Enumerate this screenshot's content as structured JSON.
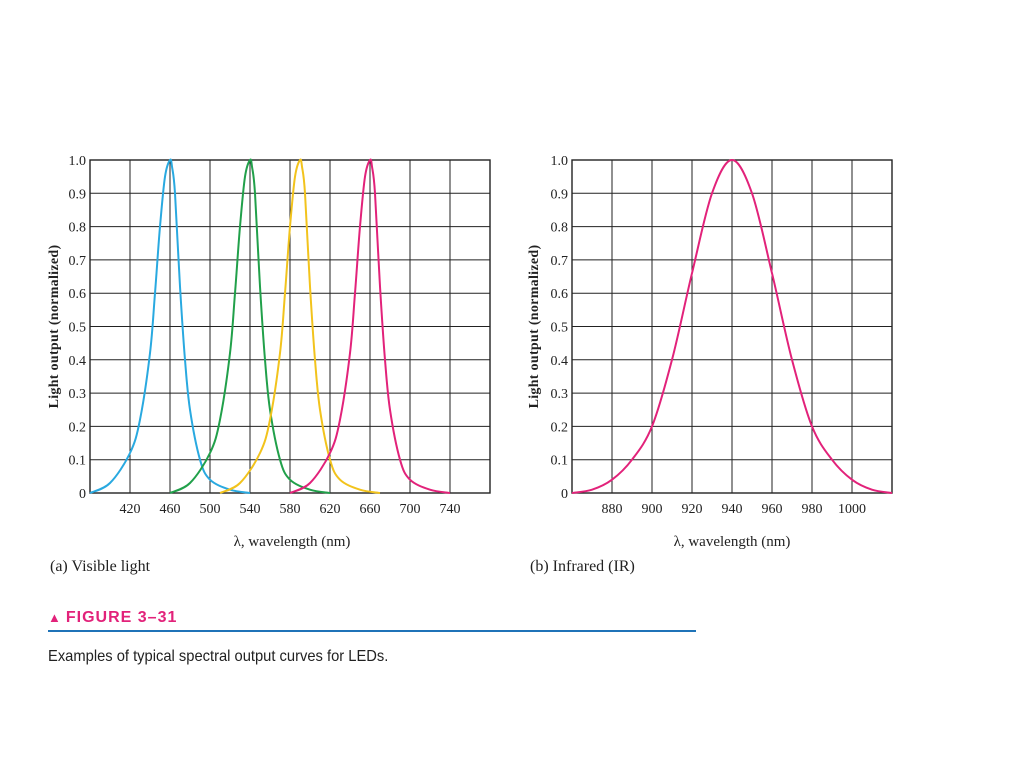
{
  "chart_data": [
    {
      "type": "line",
      "subtitle": "(a) Visible light",
      "xlabel": "λ, wavelength (nm)",
      "ylabel": "Light output (normalized)",
      "xlim": [
        380,
        780
      ],
      "ylim": [
        0,
        1.0
      ],
      "xticks": [
        420,
        460,
        500,
        540,
        580,
        620,
        660,
        700,
        740
      ],
      "yticks": [
        0,
        0.1,
        0.2,
        0.3,
        0.4,
        0.5,
        0.6,
        0.7,
        0.8,
        0.9,
        1.0
      ],
      "ytick_labels": [
        "0",
        "0.1",
        "0.2",
        "0.3",
        "0.4",
        "0.5",
        "0.6",
        "0.7",
        "0.8",
        "0.9",
        "1.0"
      ],
      "grid": true,
      "series": [
        {
          "color": "#29a9e0",
          "x": [
            380,
            400,
            420,
            430,
            440,
            445,
            450,
            455,
            460,
            462,
            465,
            470,
            475,
            480,
            490,
            500,
            520,
            540
          ],
          "y": [
            0,
            0.03,
            0.12,
            0.22,
            0.42,
            0.6,
            0.8,
            0.95,
            1.0,
            0.98,
            0.9,
            0.62,
            0.4,
            0.25,
            0.1,
            0.04,
            0.01,
            0
          ]
        },
        {
          "color": "#21a04a",
          "x": [
            460,
            480,
            500,
            510,
            520,
            525,
            530,
            535,
            540,
            542,
            545,
            550,
            555,
            560,
            570,
            580,
            600,
            620
          ],
          "y": [
            0,
            0.03,
            0.12,
            0.22,
            0.42,
            0.6,
            0.8,
            0.95,
            1.0,
            0.98,
            0.9,
            0.62,
            0.4,
            0.25,
            0.1,
            0.04,
            0.01,
            0
          ]
        },
        {
          "color": "#f2c31c",
          "x": [
            510,
            530,
            550,
            560,
            570,
            575,
            580,
            585,
            590,
            592,
            595,
            600,
            605,
            610,
            620,
            630,
            650,
            670
          ],
          "y": [
            0,
            0.03,
            0.12,
            0.22,
            0.42,
            0.6,
            0.8,
            0.95,
            1.0,
            0.98,
            0.9,
            0.62,
            0.4,
            0.25,
            0.1,
            0.04,
            0.01,
            0
          ]
        },
        {
          "color": "#e2227a",
          "x": [
            580,
            600,
            620,
            630,
            640,
            645,
            650,
            655,
            660,
            662,
            665,
            670,
            675,
            680,
            690,
            700,
            720,
            740
          ],
          "y": [
            0,
            0.03,
            0.12,
            0.22,
            0.42,
            0.6,
            0.8,
            0.95,
            1.0,
            0.98,
            0.9,
            0.62,
            0.4,
            0.25,
            0.1,
            0.04,
            0.01,
            0
          ]
        }
      ]
    },
    {
      "type": "line",
      "subtitle": "(b) Infrared (IR)",
      "xlabel": "λ, wavelength (nm)",
      "ylabel": "Light output (normalized)",
      "xlim": [
        860,
        1020
      ],
      "ylim": [
        0,
        1.0
      ],
      "xticks": [
        880,
        900,
        920,
        940,
        960,
        980,
        1000
      ],
      "yticks": [
        0,
        0.1,
        0.2,
        0.3,
        0.4,
        0.5,
        0.6,
        0.7,
        0.8,
        0.9,
        1.0
      ],
      "ytick_labels": [
        "0",
        "0.1",
        "0.2",
        "0.3",
        "0.4",
        "0.5",
        "0.6",
        "0.7",
        "0.8",
        "0.9",
        "1.0"
      ],
      "grid": true,
      "series": [
        {
          "color": "#e2227a",
          "x": [
            860,
            870,
            880,
            890,
            900,
            910,
            920,
            930,
            940,
            950,
            960,
            970,
            980,
            990,
            1000,
            1010,
            1020
          ],
          "y": [
            0.0,
            0.01,
            0.04,
            0.1,
            0.2,
            0.4,
            0.66,
            0.9,
            1.0,
            0.9,
            0.66,
            0.4,
            0.2,
            0.1,
            0.04,
            0.01,
            0.0
          ]
        }
      ]
    }
  ],
  "figure": {
    "label": "FIGURE 3–31",
    "marker": "▲",
    "caption": "Examples of typical spectral output curves for LEDs.",
    "accent_color": "#e2227a",
    "rule_color": "#1f73b8"
  }
}
